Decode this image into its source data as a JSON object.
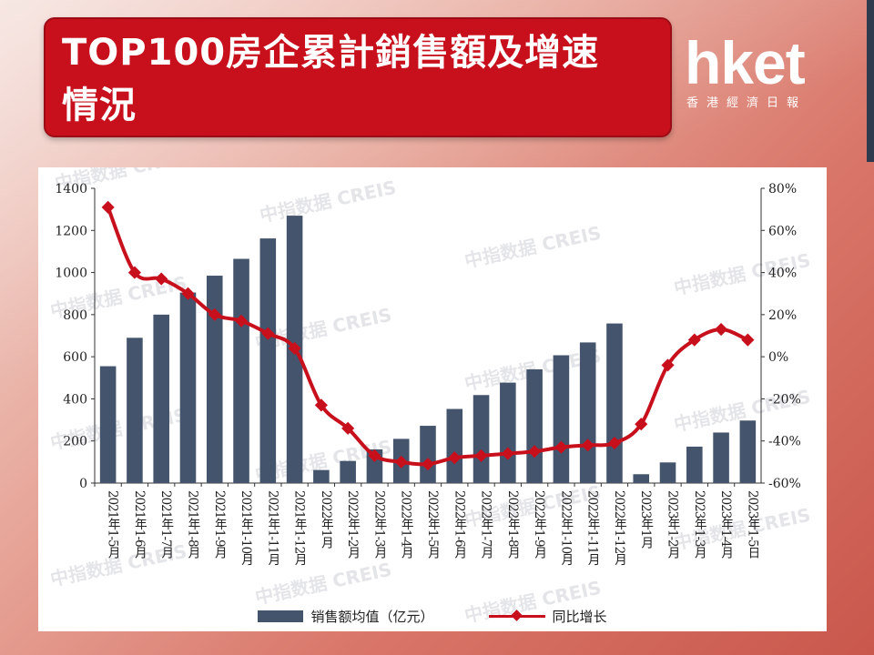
{
  "title": "TOP100房企累計銷售額及增速情況",
  "logo": {
    "main": "hket",
    "sub": "香港經濟日報"
  },
  "watermark": "中指数据 CREIS",
  "chart_data": {
    "type": "bar",
    "categories": [
      "2021年1-5月",
      "2021年1-6月",
      "2021年1-7月",
      "2021年1-8月",
      "2021年1-9月",
      "2021年1-10月",
      "2021年1-11月",
      "2021年1-12月",
      "2022年1月",
      "2022年1-2月",
      "2022年1-3月",
      "2022年1-4月",
      "2022年1-5月",
      "2022年1-6月",
      "2022年1-7月",
      "2022年1-8月",
      "2022年1-9月",
      "2022年1-10月",
      "2022年1-11月",
      "2022年1-12月",
      "2023年1月",
      "2023年1-2月",
      "2023年1-3月",
      "2023年1-4月",
      "2023年1-5日"
    ],
    "series": [
      {
        "name": "销售额均值（亿元）",
        "type": "bar",
        "axis": "left",
        "values": [
          555,
          690,
          800,
          905,
          985,
          1065,
          1162,
          1270,
          62,
          105,
          160,
          210,
          272,
          352,
          418,
          477,
          540,
          607,
          668,
          758,
          42,
          98,
          173,
          240,
          297
        ]
      },
      {
        "name": "同比增长",
        "type": "line",
        "axis": "right",
        "unit": "%",
        "values": [
          71,
          40,
          37,
          30,
          20,
          17,
          11,
          4,
          -23,
          -34,
          -47,
          -50,
          -51,
          -48,
          -47,
          -46,
          -45,
          -43,
          -42,
          -41,
          -32,
          -4,
          8,
          13,
          8
        ]
      }
    ],
    "y_left": {
      "min": 0,
      "max": 1400,
      "ticks": [
        0,
        200,
        400,
        600,
        800,
        1000,
        1200,
        1400
      ]
    },
    "y_right": {
      "min": -60,
      "max": 80,
      "ticks": [
        "-60%",
        "-40%",
        "-20%",
        "0%",
        "20%",
        "40%",
        "60%",
        "80%"
      ]
    },
    "colors": {
      "bar": "#44546d",
      "line": "#c8101d"
    },
    "legend": {
      "position": "bottom"
    },
    "grid": false
  }
}
